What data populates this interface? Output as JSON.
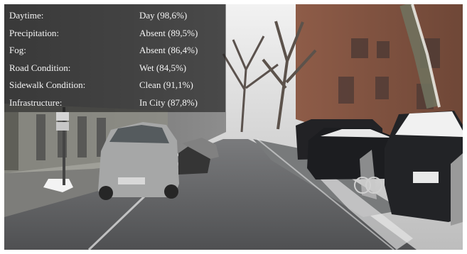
{
  "overlay": {
    "rows": [
      {
        "label": "Daytime:",
        "value": "Day (98,6%)"
      },
      {
        "label": "Precipitation:",
        "value": "Absent (89,5%)"
      },
      {
        "label": "Fog:",
        "value": "Absent (86,4%)"
      },
      {
        "label": "Road Condition:",
        "value": "Wet (84,5%)"
      },
      {
        "label": "Sidewalk Condition:",
        "value": "Clean (91,1%)"
      },
      {
        "label": "Infrastructure:",
        "value": "In City (87,8%)"
      }
    ]
  },
  "colors": {
    "overlay_bg": "#181818",
    "text": "#f5f5f5",
    "sky": "#d8d8d8",
    "building": "#8a5a43",
    "road": "#5f6062"
  }
}
